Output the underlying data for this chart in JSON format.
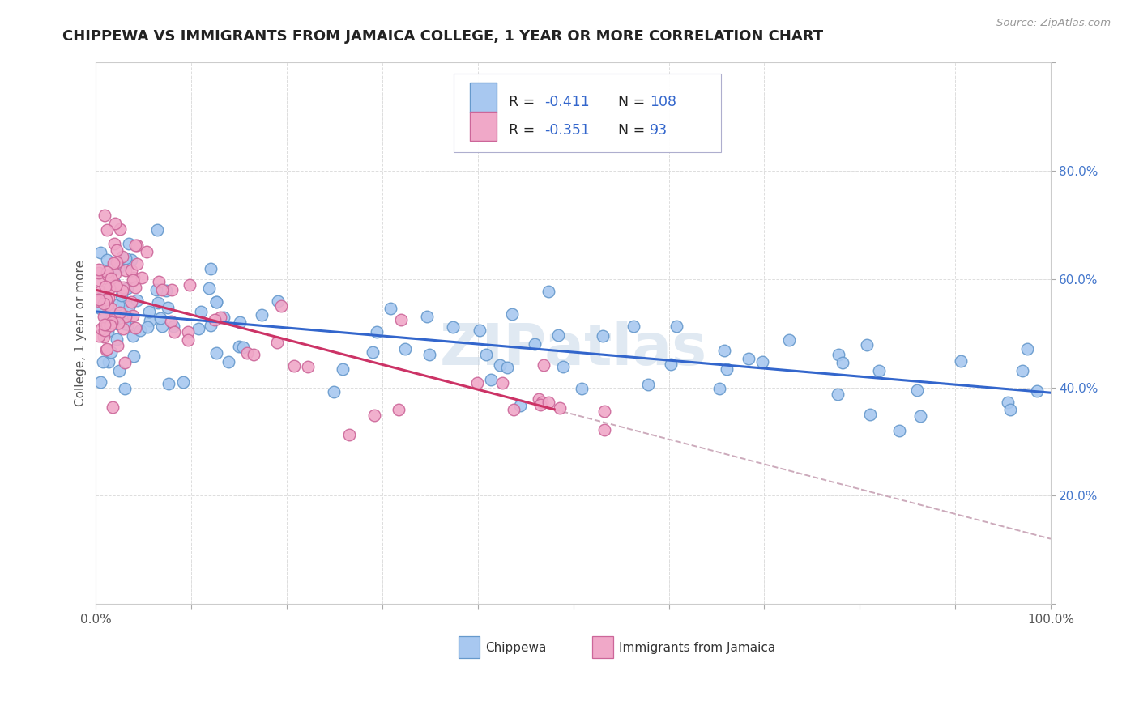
{
  "title": "CHIPPEWA VS IMMIGRANTS FROM JAMAICA COLLEGE, 1 YEAR OR MORE CORRELATION CHART",
  "source": "Source: ZipAtlas.com",
  "ylabel": "College, 1 year or more",
  "xlim": [
    0.0,
    1.0
  ],
  "ylim": [
    0.0,
    1.0
  ],
  "chippewa_color": "#a8c8f0",
  "chippewa_edge": "#6699cc",
  "jamaica_color": "#f0a8c8",
  "jamaica_edge": "#cc6699",
  "trend_blue": "#3366cc",
  "trend_pink": "#cc3366",
  "trend_dash_color": "#ccaabb",
  "R_chippewa": -0.411,
  "N_chippewa": 108,
  "R_jamaica": -0.351,
  "N_jamaica": 93,
  "legend_label_1": "Chippewa",
  "legend_label_2": "Immigrants from Jamaica",
  "watermark": "ZIPatlas",
  "ytick_color": "#4477cc",
  "title_color": "#222222",
  "title_fontsize": 13,
  "label_fontsize": 11,
  "tick_fontsize": 11,
  "source_color": "#999999"
}
